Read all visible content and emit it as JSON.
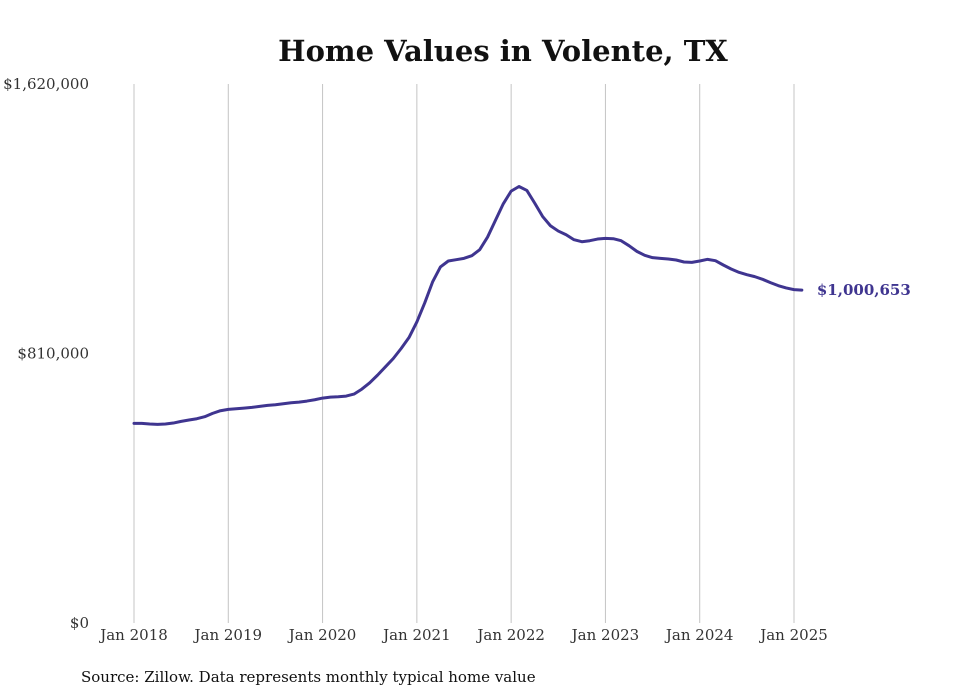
{
  "chart_data": {
    "type": "line",
    "title": "Home Values in Volente, TX",
    "xlabel": "",
    "ylabel": "",
    "ylim": [
      0,
      1620000
    ],
    "y_ticks": [
      {
        "value": 0,
        "label": "$0"
      },
      {
        "value": 810000,
        "label": "$810,000"
      },
      {
        "value": 1620000,
        "label": "$1,620,000"
      }
    ],
    "x_ticks": [
      {
        "month_index": 0,
        "label": "Jan 2018"
      },
      {
        "month_index": 12,
        "label": "Jan 2019"
      },
      {
        "month_index": 24,
        "label": "Jan 2020"
      },
      {
        "month_index": 36,
        "label": "Jan 2021"
      },
      {
        "month_index": 48,
        "label": "Jan 2022"
      },
      {
        "month_index": 60,
        "label": "Jan 2023"
      },
      {
        "month_index": 72,
        "label": "Jan 2024"
      },
      {
        "month_index": 84,
        "label": "Jan 2025"
      }
    ],
    "grid": "vertical",
    "series": [
      {
        "name": "Typical home value",
        "color": "#3f3590",
        "end_label": "$1,000,653",
        "start": "Jan 2018",
        "values": [
          600000,
          600000,
          598000,
          597000,
          598000,
          601000,
          606000,
          610000,
          614000,
          620000,
          630000,
          638000,
          642000,
          644000,
          646000,
          648000,
          651000,
          654000,
          656000,
          659000,
          662000,
          664000,
          667000,
          671000,
          676000,
          679000,
          680000,
          682000,
          688000,
          703000,
          722000,
          745000,
          770000,
          795000,
          825000,
          858000,
          905000,
          962000,
          1025000,
          1070000,
          1088000,
          1092000,
          1096000,
          1104000,
          1122000,
          1160000,
          1210000,
          1260000,
          1298000,
          1312000,
          1300000,
          1262000,
          1222000,
          1194000,
          1178000,
          1167000,
          1152000,
          1146000,
          1149000,
          1154000,
          1156000,
          1155000,
          1149000,
          1134000,
          1117000,
          1105000,
          1098000,
          1096000,
          1094000,
          1091000,
          1085000,
          1084000,
          1088000,
          1093000,
          1089000,
          1076000,
          1064000,
          1054000,
          1047000,
          1041000,
          1033000,
          1023000,
          1014000,
          1007000,
          1002000,
          1000653
        ]
      }
    ],
    "source": "Source: Zillow. Data represents monthly typical home value"
  }
}
